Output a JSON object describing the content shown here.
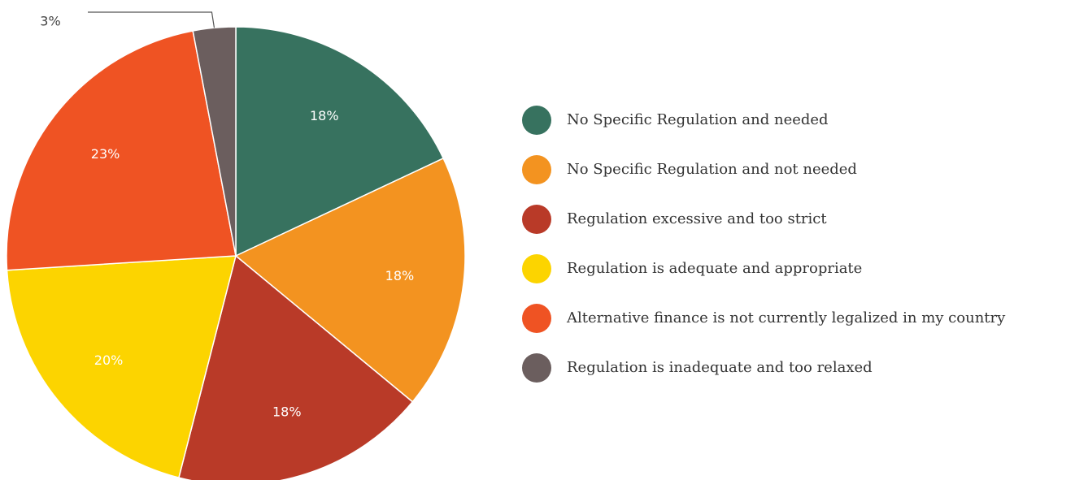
{
  "chart_data": {
    "type": "pie",
    "categories": [
      "No Specific Regulation and needed",
      "No Specific Regulation and not needed",
      "Regulation excessive and too strict",
      "Regulation is adequate and appropriate",
      "Alternative finance is not currently legalized in my country",
      "Regulation is inadequate and too relaxed"
    ],
    "values": [
      18,
      18,
      18,
      20,
      23,
      3
    ],
    "value_labels": [
      "18%",
      "18%",
      "18%",
      "20%",
      "23%",
      "3%"
    ],
    "colors": [
      "#37725f",
      "#f39320",
      "#b93a28",
      "#fcd400",
      "#ef5323",
      "#6b5e5e"
    ],
    "legend": "right"
  }
}
